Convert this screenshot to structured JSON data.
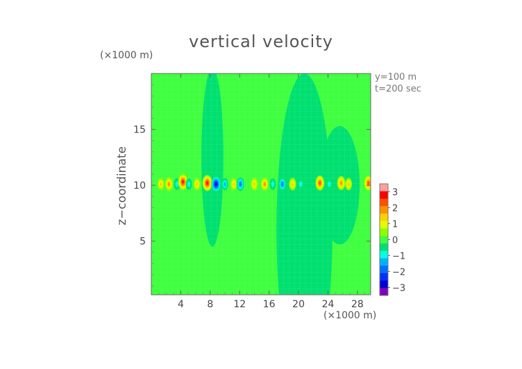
{
  "chart_data": {
    "type": "heatmap",
    "title": "vertical velocity",
    "ylabel": "z−coordinate",
    "y_unit": "(×1000 m)",
    "x_unit": "(×1000 m)",
    "annotations": [
      "y=100 m",
      "t=200 sec"
    ],
    "xlim": [
      0,
      29.8
    ],
    "ylim": [
      0.2,
      20
    ],
    "x_ticks": [
      4,
      8,
      12,
      16,
      20,
      24,
      28
    ],
    "x_tick_labels": [
      "4",
      "8",
      "12",
      "16",
      "20",
      "24",
      "28"
    ],
    "y_ticks": [
      5,
      10,
      15
    ],
    "y_tick_labels": [
      "5",
      "10",
      "15"
    ],
    "colorbar": {
      "range": [
        -3.5,
        3.5
      ],
      "ticks": [
        3,
        2,
        1,
        0,
        -1,
        -2,
        -3
      ],
      "tick_labels": [
        "3",
        "2",
        "1",
        "0",
        "−1",
        "−2",
        "−3"
      ],
      "colors": [
        "#ffa0a0",
        "#ff0000",
        "#ff5000",
        "#ff9000",
        "#ffd000",
        "#e0ff00",
        "#90ff00",
        "#40ff40",
        "#00e070",
        "#00ffe0",
        "#00b0ff",
        "#0070ff",
        "#0030ff",
        "#0000d0",
        "#8000c0"
      ]
    },
    "features": [
      {
        "kind": "region",
        "x": 8.3,
        "y": 12.5,
        "rx": 1.5,
        "ry": 8,
        "value": -0.25
      },
      {
        "kind": "region",
        "x": 20.8,
        "y": 6,
        "rx": 3.8,
        "ry": 14,
        "value": -0.25
      },
      {
        "kind": "region",
        "x": 19.5,
        "y": 10,
        "rx": 1.5,
        "ry": 5,
        "value": -0.4
      },
      {
        "kind": "region",
        "x": 25.6,
        "y": 10,
        "rx": 2.7,
        "ry": 5.3,
        "value": -0.35
      },
      {
        "kind": "region",
        "x": 25.6,
        "y": 10,
        "rx": 1.2,
        "ry": 3,
        "value": -0.6
      },
      {
        "kind": "blob",
        "x": 1.3,
        "y": 10.1,
        "value": 1.2
      },
      {
        "kind": "blob",
        "x": 2.4,
        "y": 10.1,
        "value": 1.8
      },
      {
        "kind": "blob",
        "x": 3.5,
        "y": 10.1,
        "value": -1.0
      },
      {
        "kind": "blob",
        "x": 4.3,
        "y": 10.3,
        "value": 2.8
      },
      {
        "kind": "blob",
        "x": 5.1,
        "y": 10.1,
        "value": -0.8
      },
      {
        "kind": "blob",
        "x": 6.2,
        "y": 10.1,
        "value": 1.2
      },
      {
        "kind": "blob",
        "x": 7.6,
        "y": 10.2,
        "value": 2.9
      },
      {
        "kind": "blob",
        "x": 8.8,
        "y": 10.1,
        "value": -3.0
      },
      {
        "kind": "blob",
        "x": 10.0,
        "y": 10.1,
        "value": -1.1
      },
      {
        "kind": "blob",
        "x": 11.2,
        "y": 10.1,
        "value": 1.1
      },
      {
        "kind": "blob",
        "x": 12.1,
        "y": 10.1,
        "value": -1.7
      },
      {
        "kind": "blob",
        "x": 14.0,
        "y": 10.1,
        "value": 1.4
      },
      {
        "kind": "blob",
        "x": 15.4,
        "y": 10.1,
        "value": 1.6
      },
      {
        "kind": "blob",
        "x": 16.5,
        "y": 10.1,
        "value": -0.9
      },
      {
        "kind": "blob",
        "x": 17.8,
        "y": 10.1,
        "value": -1.6
      },
      {
        "kind": "blob",
        "x": 19.2,
        "y": 10.1,
        "value": 1.3
      },
      {
        "kind": "blob",
        "x": 20.3,
        "y": 10.1,
        "value": -1.0
      },
      {
        "kind": "blob",
        "x": 22.9,
        "y": 10.2,
        "value": 2.4
      },
      {
        "kind": "blob",
        "x": 24.2,
        "y": 10.1,
        "value": -1.0
      },
      {
        "kind": "blob",
        "x": 25.8,
        "y": 10.2,
        "value": 2.0
      },
      {
        "kind": "blob",
        "x": 26.8,
        "y": 10.1,
        "value": 1.2
      },
      {
        "kind": "blob",
        "x": 29.5,
        "y": 10.2,
        "value": 2.4
      }
    ]
  }
}
